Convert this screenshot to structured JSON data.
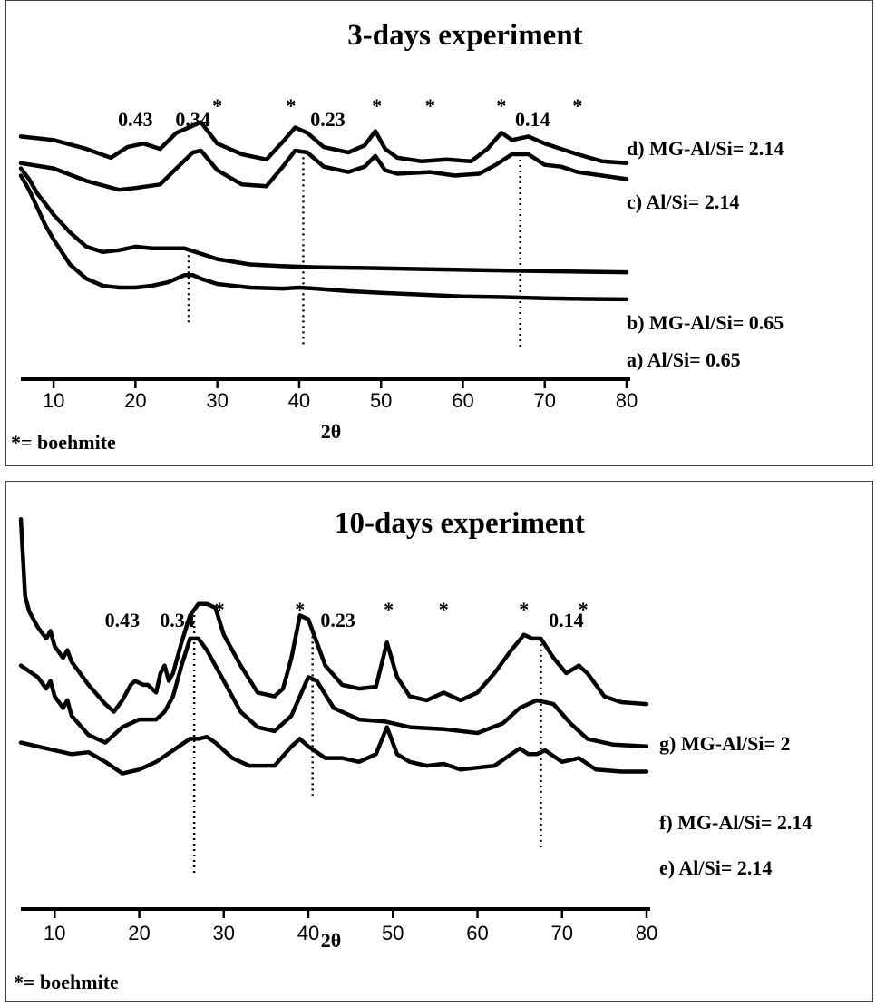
{
  "chart_data": [
    {
      "type": "line",
      "title": "3-days experiment",
      "xlabel": "2θ",
      "footnote": "*= boehmite",
      "xlim": [
        6,
        80
      ],
      "xticks": [
        10,
        20,
        30,
        40,
        50,
        60,
        70,
        80
      ],
      "ylabel": "",
      "y_scale": "arbitrary intensity, curves offset",
      "grid": false,
      "reference_lines_2theta": [
        26.5,
        40.5,
        67
      ],
      "annotations": [
        {
          "text": "0.43",
          "x": 20
        },
        {
          "text": "0.34",
          "x": 27
        },
        {
          "text": "*",
          "x": 30
        },
        {
          "text": "*",
          "x": 39
        },
        {
          "text": "0.23",
          "x": 43.5
        },
        {
          "text": "*",
          "x": 49.5
        },
        {
          "text": "*",
          "x": 56
        },
        {
          "text": "*",
          "x": 64.7
        },
        {
          "text": "0.14",
          "x": 68.5
        },
        {
          "text": "*",
          "x": 74
        }
      ],
      "series": [
        {
          "name": "d) MG-Al/Si= 2.14",
          "x": [
            6,
            10,
            14,
            17,
            19,
            21,
            23,
            25,
            27,
            28,
            30,
            33,
            36,
            38,
            39.5,
            41,
            43,
            46,
            48,
            49.3,
            50.5,
            52,
            55,
            58,
            61,
            63,
            64.7,
            66,
            68,
            70,
            72,
            74,
            77,
            80
          ],
          "y": [
            97,
            96,
            93.5,
            91,
            94,
            95,
            93.5,
            98,
            100,
            101,
            95,
            92,
            90.5,
            95.5,
            99.5,
            98,
            94,
            92.5,
            94.5,
            98.5,
            93.5,
            91,
            90,
            90.5,
            90,
            93.5,
            98,
            96,
            97,
            95,
            93.5,
            92,
            90,
            89.5
          ]
        },
        {
          "name": "c) Al/Si= 2.14",
          "x": [
            6,
            10,
            14,
            18,
            20,
            23,
            25,
            27,
            28,
            30,
            33,
            36,
            38,
            39.5,
            41,
            43,
            46,
            48,
            49.3,
            50.5,
            52,
            56,
            59,
            62,
            64,
            66,
            68,
            70,
            72,
            74,
            77,
            80
          ],
          "y": [
            89.5,
            88,
            84.5,
            82,
            82.5,
            83.5,
            88,
            92.5,
            93,
            87.5,
            83.5,
            83,
            88.5,
            93,
            92.5,
            88.5,
            87,
            88.5,
            91.5,
            87.5,
            86.5,
            87,
            86,
            86.5,
            89,
            92,
            92,
            89,
            88.5,
            87,
            86,
            85
          ]
        },
        {
          "name": "b) MG-Al/Si= 0.65",
          "x": [
            6,
            7,
            8,
            9,
            10,
            12,
            14,
            16,
            18,
            20,
            22,
            24,
            26,
            28,
            30,
            34,
            38,
            42,
            48,
            55,
            62,
            70,
            80
          ],
          "y": [
            88,
            85,
            81,
            78,
            75,
            70,
            66,
            64.5,
            65,
            66,
            65.5,
            65.5,
            65.5,
            64,
            62.5,
            61,
            60.5,
            60.2,
            60,
            59.7,
            59.4,
            59.1,
            58.8
          ]
        },
        {
          "name": "a) Al/Si= 0.65",
          "x": [
            6,
            7,
            8,
            9,
            10,
            12,
            14,
            16,
            18,
            20,
            22,
            24,
            26,
            27,
            28,
            30,
            34,
            38,
            40,
            42,
            46,
            50,
            55,
            60,
            65,
            70,
            75,
            80
          ],
          "y": [
            86,
            82,
            77,
            72,
            68,
            61,
            57,
            55,
            54.5,
            54.5,
            55,
            56,
            58,
            58,
            57,
            55.5,
            54.5,
            54.2,
            54.5,
            54.2,
            53.5,
            53,
            52.5,
            52,
            51.8,
            51.5,
            51.3,
            51.2
          ]
        }
      ]
    },
    {
      "type": "line",
      "title": "10-days experiment",
      "xlabel": "2θ",
      "footnote": "*= boehmite",
      "xlim": [
        6,
        80
      ],
      "xticks": [
        10,
        20,
        30,
        40,
        50,
        60,
        70,
        80
      ],
      "ylabel": "",
      "y_scale": "arbitrary intensity, curves offset",
      "grid": false,
      "reference_lines_2theta": [
        26.5,
        40.5,
        67.5
      ],
      "annotations": [
        {
          "text": "0.43",
          "x": 18
        },
        {
          "text": "0.34",
          "x": 24.5
        },
        {
          "text": "*",
          "x": 29.5
        },
        {
          "text": "*",
          "x": 39
        },
        {
          "text": "0.23",
          "x": 43.5
        },
        {
          "text": "*",
          "x": 49.5
        },
        {
          "text": "*",
          "x": 56
        },
        {
          "text": "*",
          "x": 65.5
        },
        {
          "text": "0.14",
          "x": 70.5
        },
        {
          "text": "*",
          "x": 72.5
        }
      ],
      "series": [
        {
          "name": "g) MG-Al/Si= 2",
          "x": [
            6,
            6.5,
            7,
            8,
            9,
            9.5,
            10,
            11,
            11.5,
            12,
            13,
            14,
            16,
            17,
            18,
            19,
            19.5,
            20.5,
            21,
            22,
            22.5,
            23,
            23.5,
            24,
            25,
            26,
            27,
            28,
            29,
            30,
            32,
            34,
            36,
            37,
            38,
            39,
            40,
            41,
            42,
            44,
            46,
            48,
            49.3,
            50.5,
            52,
            54,
            56,
            58,
            60,
            62,
            64,
            65.5,
            66.5,
            67.5,
            69,
            70.5,
            72,
            73,
            75,
            77,
            80
          ],
          "y": [
            120,
            100,
            96,
            92,
            89,
            91,
            87,
            84,
            86,
            83,
            80,
            77,
            72,
            70,
            73,
            77,
            78,
            77,
            77,
            75,
            80,
            82,
            78,
            80,
            88,
            95,
            98,
            98,
            97,
            90,
            82,
            75,
            74,
            76,
            84,
            95,
            94,
            88,
            82,
            77,
            76,
            76.5,
            88,
            79,
            74,
            73,
            75,
            73,
            75,
            80,
            86,
            90,
            89,
            89,
            84,
            80,
            82,
            80,
            74,
            72.5,
            72
          ]
        },
        {
          "name": "f) MG-Al/Si= 2.14",
          "x": [
            6,
            8,
            9,
            9.5,
            10,
            11,
            11.5,
            12,
            14,
            16,
            18,
            20,
            22,
            23,
            24,
            25,
            26,
            27,
            28,
            30,
            32,
            34,
            36,
            38,
            40,
            41,
            43,
            46,
            49,
            52,
            56,
            60,
            63,
            65,
            67,
            69,
            71,
            73,
            76,
            80
          ],
          "y": [
            82,
            79,
            76,
            78,
            74,
            71,
            73,
            69,
            64,
            62,
            66,
            68,
            68,
            70,
            74,
            82,
            89,
            89,
            86,
            78,
            70,
            66,
            65,
            69,
            79,
            78,
            71,
            68,
            67.5,
            66,
            65.5,
            64.5,
            67,
            71,
            73,
            72,
            67,
            63,
            61.5,
            61
          ]
        },
        {
          "name": "e) Al/Si= 2.14",
          "x": [
            6,
            8,
            10,
            12,
            14,
            16,
            18,
            20,
            22,
            24,
            26,
            27,
            28,
            29,
            31,
            33,
            36,
            38,
            39,
            40,
            42,
            44,
            46,
            48,
            49.3,
            50.5,
            52,
            54,
            56,
            58,
            60,
            62,
            64,
            65,
            66,
            67,
            68,
            70,
            72,
            74,
            77,
            80
          ],
          "y": [
            62,
            61,
            60,
            59,
            59.5,
            57,
            54,
            55,
            57,
            60,
            63,
            63,
            63.5,
            62,
            58,
            56,
            56,
            61,
            63,
            61,
            58,
            58,
            57,
            59,
            66,
            59,
            57,
            56,
            56.5,
            55,
            55.5,
            56,
            59,
            60.5,
            59,
            59,
            60,
            57,
            58,
            55,
            54.5,
            54.5
          ]
        }
      ]
    }
  ]
}
